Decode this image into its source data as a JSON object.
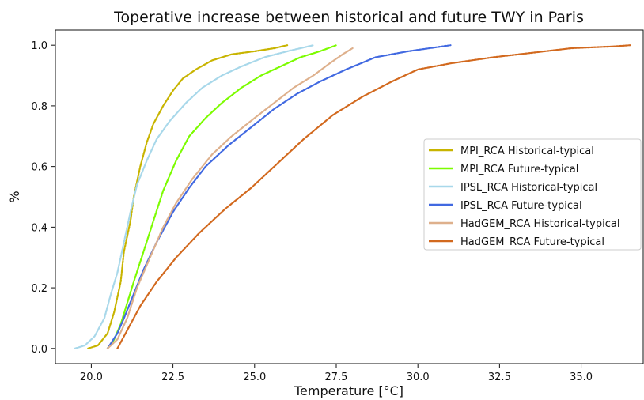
{
  "chart_data": {
    "type": "line",
    "title": "Toperative increase between historical and future TWY in Paris",
    "xlabel": "Temperature [°C]",
    "ylabel": "%",
    "xlim": [
      18.9,
      36.9
    ],
    "ylim": [
      -0.05,
      1.05
    ],
    "xticks": [
      "20.0",
      "22.5",
      "25.0",
      "27.5",
      "30.0",
      "32.5",
      "35.0"
    ],
    "yticks": [
      "0.0",
      "0.2",
      "0.4",
      "0.6",
      "0.8",
      "1.0"
    ],
    "grid": false,
    "legend_position": "center-right",
    "series": [
      {
        "name": "MPI_RCA Historical-typical",
        "color": "#c8b400",
        "points": [
          [
            19.9,
            0.0
          ],
          [
            20.2,
            0.01
          ],
          [
            20.5,
            0.05
          ],
          [
            20.7,
            0.12
          ],
          [
            20.9,
            0.22
          ],
          [
            21.0,
            0.32
          ],
          [
            21.2,
            0.42
          ],
          [
            21.3,
            0.5
          ],
          [
            21.5,
            0.6
          ],
          [
            21.7,
            0.68
          ],
          [
            21.9,
            0.74
          ],
          [
            22.2,
            0.8
          ],
          [
            22.5,
            0.85
          ],
          [
            22.8,
            0.89
          ],
          [
            23.2,
            0.92
          ],
          [
            23.7,
            0.95
          ],
          [
            24.3,
            0.97
          ],
          [
            25.0,
            0.98
          ],
          [
            25.6,
            0.99
          ],
          [
            26.0,
            1.0
          ]
        ]
      },
      {
        "name": "MPI_RCA Future-typical",
        "color": "#7cfc00",
        "points": [
          [
            20.5,
            0.0
          ],
          [
            20.7,
            0.03
          ],
          [
            20.9,
            0.08
          ],
          [
            21.1,
            0.15
          ],
          [
            21.3,
            0.22
          ],
          [
            21.6,
            0.32
          ],
          [
            21.9,
            0.42
          ],
          [
            22.2,
            0.52
          ],
          [
            22.6,
            0.62
          ],
          [
            23.0,
            0.7
          ],
          [
            23.5,
            0.76
          ],
          [
            24.0,
            0.81
          ],
          [
            24.6,
            0.86
          ],
          [
            25.2,
            0.9
          ],
          [
            25.8,
            0.93
          ],
          [
            26.4,
            0.96
          ],
          [
            27.0,
            0.98
          ],
          [
            27.5,
            1.0
          ]
        ]
      },
      {
        "name": "IPSL_RCA Historical-typical",
        "color": "#a8d8ea",
        "points": [
          [
            19.5,
            0.0
          ],
          [
            19.8,
            0.01
          ],
          [
            20.1,
            0.04
          ],
          [
            20.4,
            0.1
          ],
          [
            20.6,
            0.18
          ],
          [
            20.8,
            0.25
          ],
          [
            21.0,
            0.35
          ],
          [
            21.2,
            0.45
          ],
          [
            21.4,
            0.54
          ],
          [
            21.7,
            0.62
          ],
          [
            22.0,
            0.69
          ],
          [
            22.4,
            0.75
          ],
          [
            22.9,
            0.81
          ],
          [
            23.4,
            0.86
          ],
          [
            24.0,
            0.9
          ],
          [
            24.6,
            0.93
          ],
          [
            25.3,
            0.96
          ],
          [
            26.0,
            0.98
          ],
          [
            26.8,
            1.0
          ]
        ]
      },
      {
        "name": "IPSL_RCA Future-typical",
        "color": "#4169e1",
        "points": [
          [
            20.5,
            0.0
          ],
          [
            20.8,
            0.05
          ],
          [
            21.0,
            0.1
          ],
          [
            21.3,
            0.18
          ],
          [
            21.6,
            0.26
          ],
          [
            22.0,
            0.35
          ],
          [
            22.5,
            0.45
          ],
          [
            23.0,
            0.53
          ],
          [
            23.5,
            0.6
          ],
          [
            24.2,
            0.67
          ],
          [
            24.9,
            0.73
          ],
          [
            25.6,
            0.79
          ],
          [
            26.3,
            0.84
          ],
          [
            27.0,
            0.88
          ],
          [
            27.8,
            0.92
          ],
          [
            28.7,
            0.96
          ],
          [
            29.7,
            0.98
          ],
          [
            31.0,
            1.0
          ]
        ]
      },
      {
        "name": "HadGEM_RCA Historical-typical",
        "color": "#deb08c",
        "points": [
          [
            20.5,
            0.0
          ],
          [
            20.8,
            0.03
          ],
          [
            21.1,
            0.1
          ],
          [
            21.4,
            0.2
          ],
          [
            21.8,
            0.3
          ],
          [
            22.2,
            0.4
          ],
          [
            22.6,
            0.48
          ],
          [
            23.1,
            0.56
          ],
          [
            23.7,
            0.64
          ],
          [
            24.3,
            0.7
          ],
          [
            25.0,
            0.76
          ],
          [
            25.6,
            0.81
          ],
          [
            26.2,
            0.86
          ],
          [
            26.8,
            0.9
          ],
          [
            27.3,
            0.94
          ],
          [
            27.7,
            0.97
          ],
          [
            28.0,
            0.99
          ]
        ]
      },
      {
        "name": "HadGEM_RCA Future-typical",
        "color": "#d2691e",
        "points": [
          [
            20.8,
            0.0
          ],
          [
            21.1,
            0.06
          ],
          [
            21.5,
            0.14
          ],
          [
            22.0,
            0.22
          ],
          [
            22.6,
            0.3
          ],
          [
            23.3,
            0.38
          ],
          [
            24.1,
            0.46
          ],
          [
            24.9,
            0.53
          ],
          [
            25.7,
            0.61
          ],
          [
            26.5,
            0.69
          ],
          [
            27.4,
            0.77
          ],
          [
            28.3,
            0.83
          ],
          [
            29.2,
            0.88
          ],
          [
            30.0,
            0.92
          ],
          [
            31.0,
            0.94
          ],
          [
            32.3,
            0.96
          ],
          [
            33.5,
            0.975
          ],
          [
            34.7,
            0.99
          ],
          [
            36.0,
            0.996
          ],
          [
            36.5,
            1.0
          ]
        ]
      }
    ]
  }
}
